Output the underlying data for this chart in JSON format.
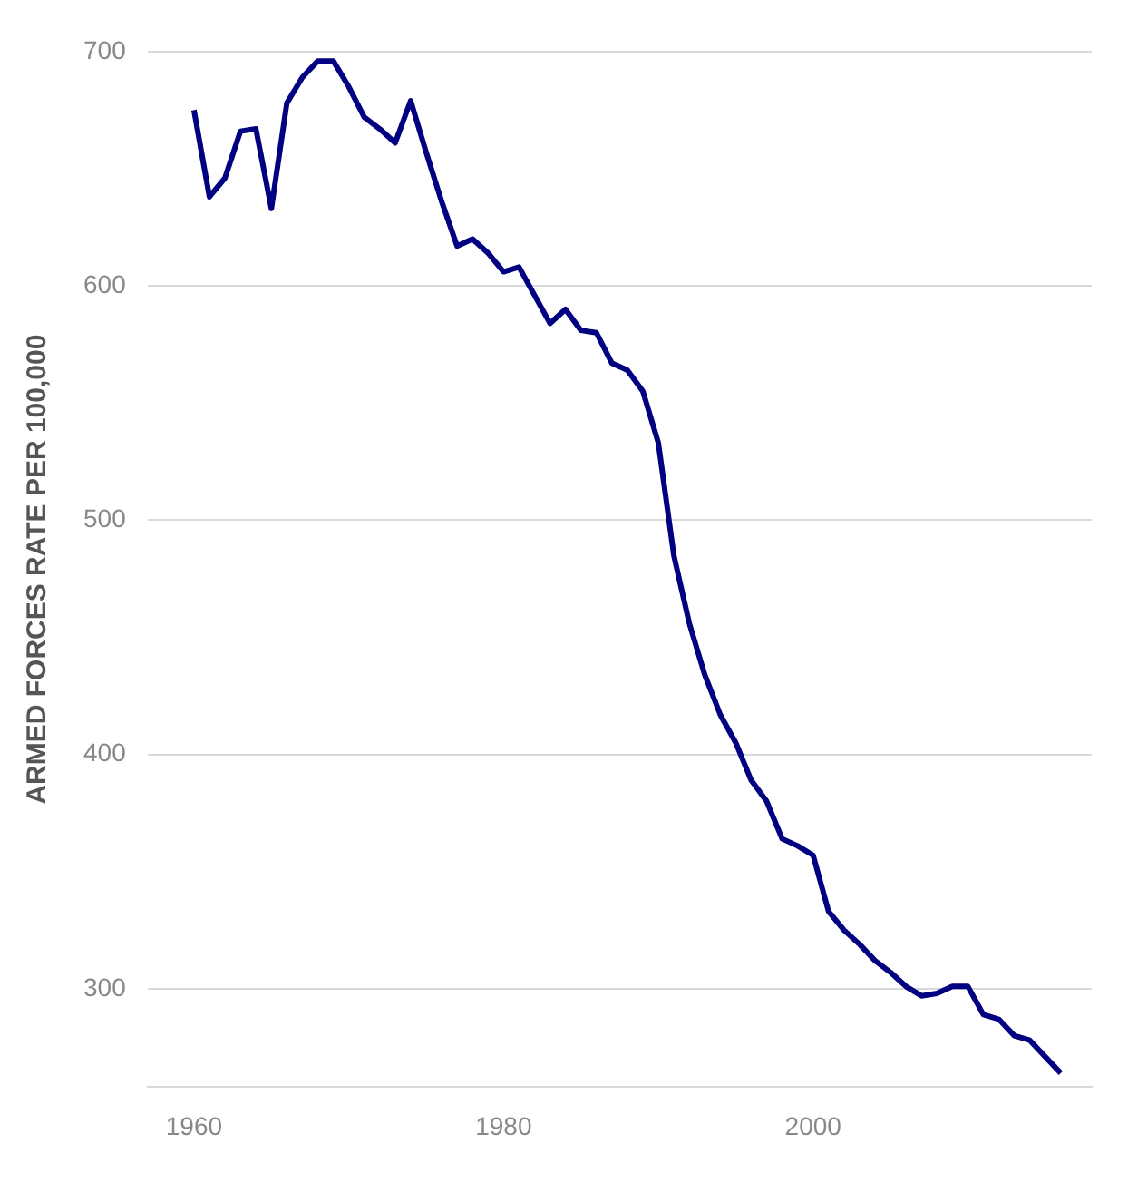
{
  "chart_data": {
    "type": "line",
    "ylabel": "ARMED FORCES RATE PER 100,000",
    "x": [
      1960,
      1961,
      1962,
      1963,
      1964,
      1965,
      1966,
      1967,
      1968,
      1969,
      1970,
      1971,
      1972,
      1973,
      1974,
      1975,
      1976,
      1977,
      1978,
      1979,
      1980,
      1981,
      1982,
      1983,
      1984,
      1985,
      1986,
      1987,
      1988,
      1989,
      1990,
      1991,
      1992,
      1993,
      1994,
      1995,
      1996,
      1997,
      1998,
      1999,
      2000,
      2001,
      2002,
      2003,
      2004,
      2005,
      2006,
      2007,
      2008,
      2009,
      2010,
      2011,
      2012,
      2013,
      2014,
      2015,
      2016
    ],
    "series": [
      {
        "color": "#000080",
        "values": [
          675,
          638,
          646,
          666,
          667,
          633,
          678,
          689,
          696,
          696,
          685,
          672,
          667,
          661,
          679,
          657,
          636,
          617,
          620,
          614,
          606,
          608,
          596,
          584,
          590,
          581,
          580,
          567,
          564,
          555,
          533,
          485,
          456,
          434,
          417,
          405,
          389,
          380,
          364,
          361,
          357,
          333,
          325,
          319,
          312,
          307,
          301,
          297,
          298,
          301,
          301,
          289,
          287,
          280,
          278,
          271,
          264
        ]
      }
    ],
    "xlim": [
      1957,
      2018
    ],
    "xticks": [
      1960,
      1980,
      2000
    ],
    "ylim": [
      258,
      700
    ],
    "yticks": [
      300,
      400,
      500,
      600,
      700
    ],
    "grid": "y",
    "legend": false,
    "marker": "none",
    "line_style": "solid"
  }
}
